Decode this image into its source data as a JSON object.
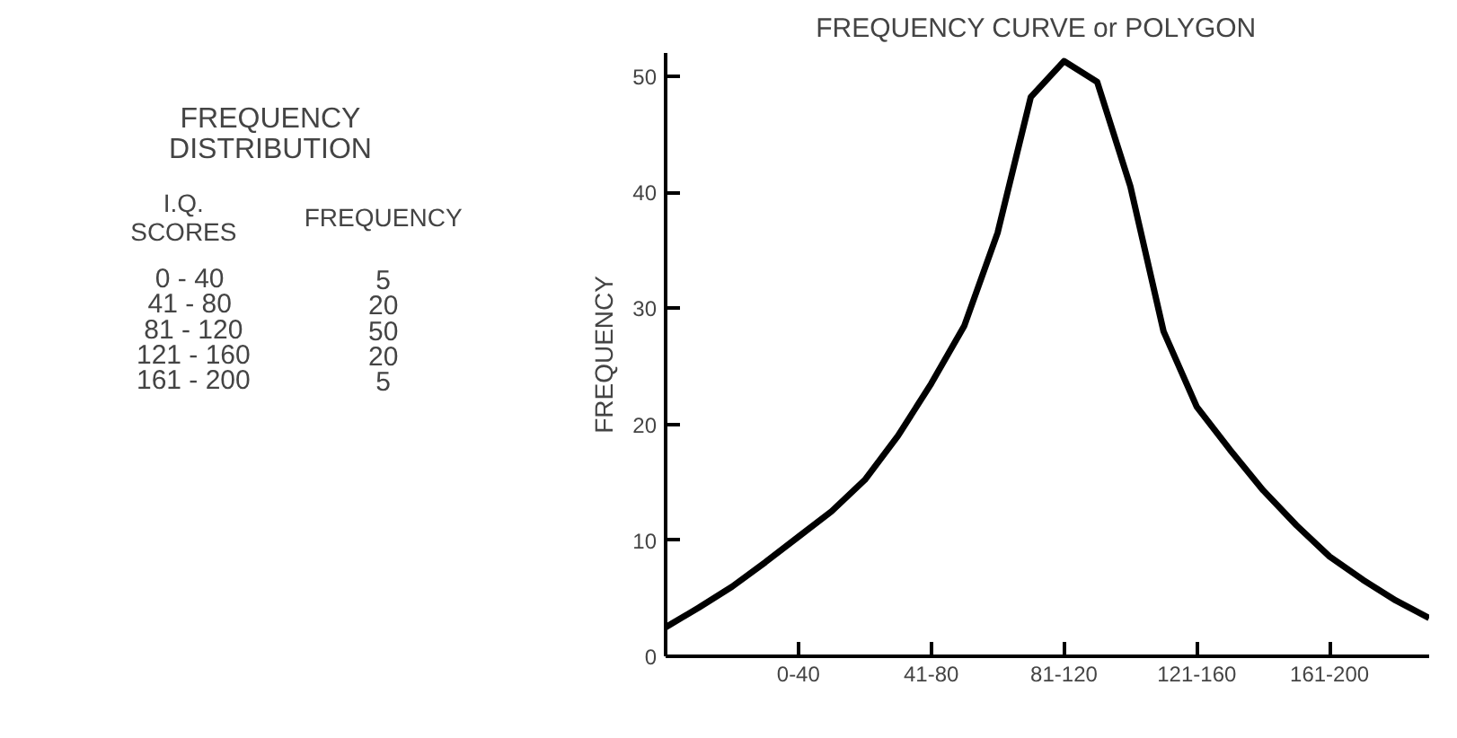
{
  "chart_data": [
    {
      "type": "other",
      "title": "FREQUENCY\nDISTRIBUTION",
      "annotations": [
        "I.Q.\nSCORES",
        "FREQUENCY",
        "0  -   40",
        "5",
        "41  -   80",
        "20",
        "81  -  120",
        "50",
        "121  -  160",
        "20",
        "161  -  200",
        "5"
      ]
    },
    {
      "type": "line",
      "title": "FREQUENCY  CURVE  or  POLYGON",
      "ylabel": "FREQUENCY",
      "color": "#000000",
      "line_style": "solid",
      "marker": "none",
      "grid": false,
      "categories": [
        null,
        null,
        null,
        null,
        "0-40",
        null,
        null,
        null,
        "41-80",
        null,
        null,
        null,
        "81-120",
        null,
        null,
        null,
        "121-160",
        null,
        null,
        null,
        "161-200",
        null,
        null,
        null
      ],
      "values": [
        2.5,
        4.2,
        6.0,
        8.1,
        10.3,
        12.5,
        15.2,
        19,
        23.5,
        28.5,
        36.5,
        48.2,
        51.3,
        49.5,
        40.5,
        28,
        21.5,
        17.8,
        14.3,
        11.3,
        8.6,
        6.6,
        4.8,
        3.3
      ],
      "ylim": [
        0,
        52
      ],
      "yticks": [
        0,
        10,
        20,
        30,
        40,
        50
      ]
    }
  ]
}
